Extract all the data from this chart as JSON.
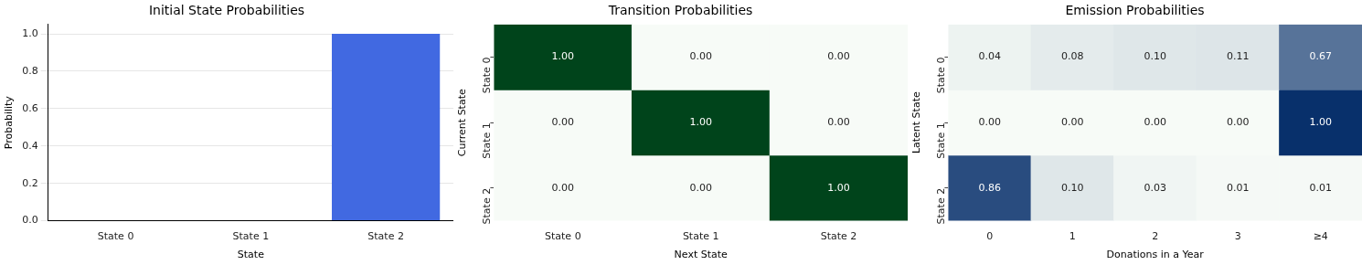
{
  "chart_data": [
    {
      "type": "bar",
      "title": "Initial State Probabilities",
      "xlabel": "State",
      "ylabel": "Probability",
      "categories": [
        "State 0",
        "State 1",
        "State 2"
      ],
      "values": [
        0,
        0,
        1.0
      ],
      "color": "#4169e1",
      "ylim": [
        0,
        1.05
      ],
      "yticks": [
        {
          "value": 0,
          "label": "0.0"
        },
        {
          "value": 0.2,
          "label": "0.2"
        },
        {
          "value": 0.4,
          "label": "0.4"
        },
        {
          "value": 0.6,
          "label": "0.6"
        },
        {
          "value": 0.8,
          "label": "0.8"
        },
        {
          "value": 1,
          "label": "1.0"
        }
      ],
      "grid": "y"
    },
    {
      "type": "heatmap",
      "title": "Transition Probabilities",
      "xlabel": "Next State",
      "ylabel": "Current State",
      "categories": [
        "State 0",
        "State 1",
        "State 2"
      ],
      "y_categories": [
        "State 0",
        "State 1",
        "State 2"
      ],
      "color": "#00441b",
      "cells": [
        [
          1,
          0,
          0
        ],
        [
          0,
          1,
          0
        ],
        [
          0,
          0,
          1
        ]
      ],
      "cell_labels": [
        [
          "1.00",
          "0.00",
          "0.00"
        ],
        [
          "0.00",
          "1.00",
          "0.00"
        ],
        [
          "0.00",
          "0.00",
          "1.00"
        ]
      ]
    },
    {
      "type": "heatmap",
      "title": "Emission Probabilities",
      "xlabel": "Donations in a Year",
      "ylabel": "Latent State",
      "categories": [
        "0",
        "1",
        "2",
        "3",
        "≥4"
      ],
      "y_categories": [
        "State 0",
        "State 1",
        "State 2"
      ],
      "color": "#08306b",
      "cells": [
        [
          0.04,
          0.08,
          0.1,
          0.11,
          0.67
        ],
        [
          0,
          0,
          0,
          0,
          1
        ],
        [
          0.86,
          0.1,
          0.03,
          0.01,
          0.01
        ]
      ],
      "cell_labels": [
        [
          "0.04",
          "0.08",
          "0.10",
          "0.11",
          "0.67"
        ],
        [
          "0.00",
          "0.00",
          "0.00",
          "0.00",
          "1.00"
        ],
        [
          "0.86",
          "0.10",
          "0.03",
          "0.01",
          "0.01"
        ]
      ]
    }
  ]
}
